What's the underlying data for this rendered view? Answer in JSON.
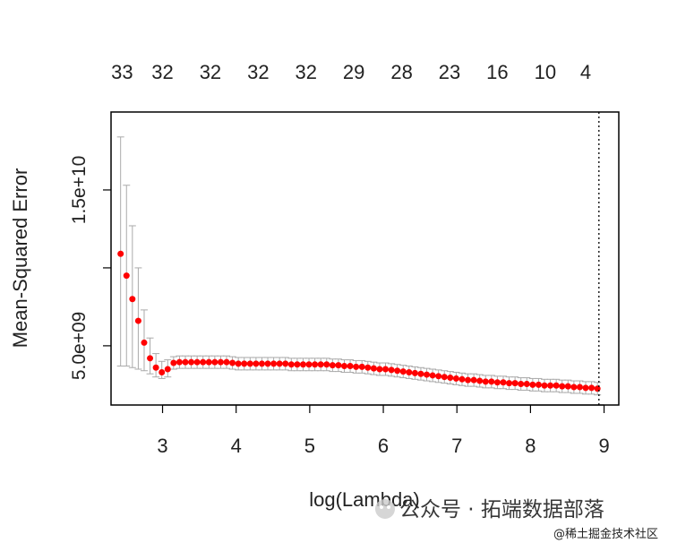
{
  "chart_data": {
    "type": "scatter",
    "xlabel": "log(Lambda)",
    "ylabel": "Mean-Squared Error",
    "xlim": [
      2.3,
      9.2
    ],
    "ylim": [
      1200000000,
      20000000000
    ],
    "x_ticks": [
      3,
      4,
      5,
      6,
      7,
      8,
      9
    ],
    "y_ticks": [
      5000000000,
      10000000000,
      15000000000
    ],
    "y_tick_labels": [
      "5.0e+09",
      "",
      "1.5e+10"
    ],
    "top_tick_positions": [
      2.45,
      3.0,
      3.65,
      4.3,
      4.95,
      5.6,
      6.25,
      6.9,
      7.55,
      8.2,
      8.75
    ],
    "top_axis_labels": [
      "33",
      "32",
      "32",
      "32",
      "32",
      "29",
      "28",
      "23",
      "16",
      "10",
      "4"
    ],
    "reference_line_x": 8.93,
    "series": [
      {
        "x": [
          2.43,
          2.51,
          2.59,
          2.67,
          2.75,
          2.83,
          2.91,
          2.99,
          3.07,
          3.15,
          3.23,
          3.31,
          3.39,
          3.47,
          3.55,
          3.63,
          3.71,
          3.79,
          3.87,
          3.95,
          4.03,
          4.11,
          4.19,
          4.27,
          4.35,
          4.43,
          4.51,
          4.59,
          4.67,
          4.75,
          4.83,
          4.91,
          4.99,
          5.07,
          5.15,
          5.23,
          5.31,
          5.39,
          5.47,
          5.55,
          5.63,
          5.71,
          5.79,
          5.87,
          5.95,
          6.03,
          6.11,
          6.19,
          6.27,
          6.35,
          6.43,
          6.51,
          6.59,
          6.67,
          6.75,
          6.83,
          6.91,
          6.99,
          7.07,
          7.15,
          7.23,
          7.31,
          7.39,
          7.47,
          7.55,
          7.63,
          7.71,
          7.79,
          7.87,
          7.95,
          8.03,
          8.11,
          8.19,
          8.27,
          8.35,
          8.43,
          8.51,
          8.59,
          8.67,
          8.75,
          8.83,
          8.91
        ],
        "y": [
          10900000000,
          9500000000,
          8000000000,
          6600000000,
          5200000000,
          4200000000,
          3600000000,
          3300000000,
          3500000000,
          3900000000,
          3950000000,
          3950000000,
          3950000000,
          3950000000,
          3950000000,
          3950000000,
          3950000000,
          3950000000,
          3950000000,
          3900000000,
          3850000000,
          3850000000,
          3850000000,
          3850000000,
          3850000000,
          3850000000,
          3850000000,
          3850000000,
          3850000000,
          3800000000,
          3800000000,
          3800000000,
          3800000000,
          3800000000,
          3800000000,
          3800000000,
          3750000000,
          3750000000,
          3700000000,
          3700000000,
          3650000000,
          3650000000,
          3600000000,
          3550000000,
          3500000000,
          3500000000,
          3450000000,
          3400000000,
          3350000000,
          3300000000,
          3250000000,
          3200000000,
          3150000000,
          3100000000,
          3050000000,
          3000000000,
          2950000000,
          2900000000,
          2850000000,
          2800000000,
          2800000000,
          2750000000,
          2700000000,
          2700000000,
          2650000000,
          2650000000,
          2600000000,
          2600000000,
          2550000000,
          2550000000,
          2500000000,
          2500000000,
          2450000000,
          2450000000,
          2450000000,
          2400000000,
          2400000000,
          2350000000,
          2350000000,
          2300000000,
          2300000000,
          2250000000
        ],
        "upper": [
          18400000000,
          15300000000,
          12700000000,
          10000000000,
          7300000000,
          5500000000,
          4500000000,
          4000000000,
          4100000000,
          4300000000,
          4350000000,
          4350000000,
          4350000000,
          4350000000,
          4350000000,
          4350000000,
          4350000000,
          4350000000,
          4350000000,
          4300000000,
          4250000000,
          4250000000,
          4250000000,
          4250000000,
          4250000000,
          4250000000,
          4250000000,
          4250000000,
          4250000000,
          4200000000,
          4200000000,
          4200000000,
          4200000000,
          4200000000,
          4200000000,
          4200000000,
          4150000000,
          4150000000,
          4100000000,
          4100000000,
          4050000000,
          4050000000,
          4000000000,
          3950000000,
          3900000000,
          3900000000,
          3850000000,
          3800000000,
          3750000000,
          3700000000,
          3650000000,
          3600000000,
          3550000000,
          3500000000,
          3450000000,
          3400000000,
          3350000000,
          3300000000,
          3250000000,
          3200000000,
          3200000000,
          3150000000,
          3100000000,
          3100000000,
          3050000000,
          3050000000,
          3000000000,
          3000000000,
          2950000000,
          2950000000,
          2900000000,
          2900000000,
          2850000000,
          2850000000,
          2850000000,
          2800000000,
          2800000000,
          2750000000,
          2750000000,
          2700000000,
          2700000000,
          2650000000
        ],
        "lower": [
          3700000000,
          3700000000,
          3600000000,
          3500000000,
          3400000000,
          3200000000,
          3000000000,
          2900000000,
          3000000000,
          3500000000,
          3550000000,
          3550000000,
          3550000000,
          3550000000,
          3550000000,
          3550000000,
          3550000000,
          3550000000,
          3550000000,
          3500000000,
          3450000000,
          3450000000,
          3450000000,
          3450000000,
          3450000000,
          3450000000,
          3450000000,
          3450000000,
          3450000000,
          3400000000,
          3400000000,
          3400000000,
          3400000000,
          3400000000,
          3400000000,
          3400000000,
          3350000000,
          3350000000,
          3300000000,
          3300000000,
          3250000000,
          3250000000,
          3200000000,
          3150000000,
          3100000000,
          3100000000,
          3050000000,
          3000000000,
          2950000000,
          2900000000,
          2850000000,
          2800000000,
          2750000000,
          2700000000,
          2650000000,
          2600000000,
          2550000000,
          2500000000,
          2450000000,
          2400000000,
          2400000000,
          2350000000,
          2300000000,
          2300000000,
          2250000000,
          2250000000,
          2200000000,
          2200000000,
          2150000000,
          2150000000,
          2100000000,
          2100000000,
          2050000000,
          2050000000,
          2050000000,
          2000000000,
          2000000000,
          1950000000,
          1950000000,
          1900000000,
          1900000000,
          1850000000
        ]
      }
    ],
    "colors": {
      "points": "#ff0000",
      "error_bars": "#aaaaaa",
      "axis": "#000000",
      "text": "#222222"
    }
  },
  "watermark": {
    "line1": "公众号 · 拓端数据部落",
    "line2": "@稀土掘金技术社区"
  }
}
